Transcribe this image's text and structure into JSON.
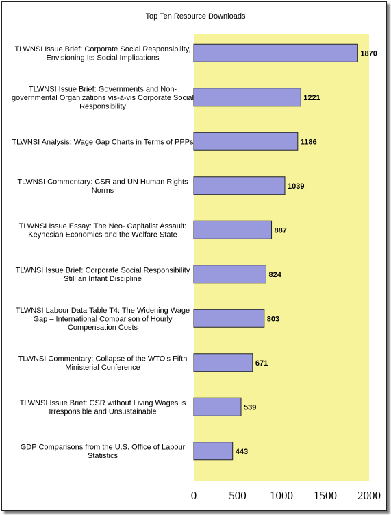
{
  "chart_data": {
    "type": "bar",
    "orientation": "horizontal",
    "title": "Top Ten Resource Downloads",
    "xlabel": "",
    "ylabel": "",
    "xlim": [
      0,
      2000
    ],
    "x_ticks": [
      0,
      500,
      1000,
      1500,
      2000
    ],
    "grid": false,
    "legend": "none",
    "plot_background": "#F6F39B",
    "bar_color": "#9999DD",
    "bar_border_color": "#222222",
    "categories": [
      [
        "TLWNSI Issue Brief:  Corporate Social Responsibility,",
        "Envisioning Its Social Implications"
      ],
      [
        "TLWNSI Issue Brief:  Governments and Non-",
        "governmental Organizations vis-à-vis Corporate Social",
        "Responsibility"
      ],
      [
        "TLWNSI Analysis: Wage Gap Charts in Terms of PPPs"
      ],
      [
        "TLWNSI Commentary: CSR and UN Human Rights",
        "Norms"
      ],
      [
        "TLWNSI Issue Essay:  The Neo- Capitalist Assault:",
        "Keynesian Economics and the Welfare State"
      ],
      [
        "TLWNSI Issue Brief:  Corporate Social Responsibility",
        "Still an Infant Discipline"
      ],
      [
        "TLWNSI Labour Data Table T4: The Widening Wage",
        "Gap – International Comparison of Hourly",
        "Compensation Costs"
      ],
      [
        "TLWNSI Commentary: Collapse of the WTO's Fifth",
        "Ministerial Conference"
      ],
      [
        "TLWNSI Issue Brief: CSR without Living Wages is",
        "Irresponsible and Unsustainable"
      ],
      [
        "GDP Comparisons from the U.S. Office of Labour",
        "Statistics"
      ]
    ],
    "values": [
      1870,
      1221,
      1186,
      1039,
      887,
      824,
      803,
      671,
      539,
      443
    ]
  }
}
